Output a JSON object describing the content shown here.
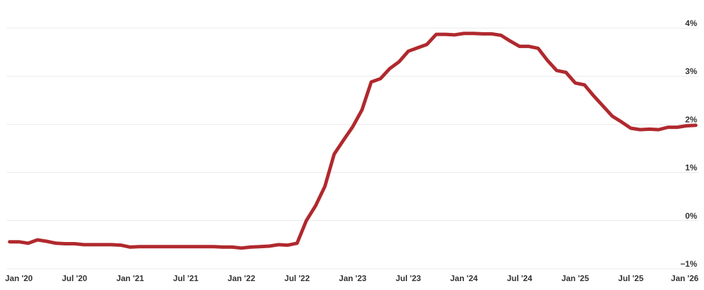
{
  "chart_data": {
    "type": "line",
    "x": [
      "2019-12",
      "2020-01",
      "2020-02",
      "2020-03",
      "2020-04",
      "2020-05",
      "2020-06",
      "2020-07",
      "2020-08",
      "2020-09",
      "2020-10",
      "2020-11",
      "2020-12",
      "2021-01",
      "2021-02",
      "2021-03",
      "2021-04",
      "2021-05",
      "2021-06",
      "2021-07",
      "2021-08",
      "2021-09",
      "2021-10",
      "2021-11",
      "2021-12",
      "2022-01",
      "2022-02",
      "2022-03",
      "2022-04",
      "2022-05",
      "2022-06",
      "2022-07",
      "2022-08",
      "2022-09",
      "2022-10",
      "2022-11",
      "2022-12",
      "2023-01",
      "2023-02",
      "2023-03",
      "2023-04",
      "2023-05",
      "2023-06",
      "2023-07",
      "2023-08",
      "2023-09",
      "2023-10",
      "2023-11",
      "2023-12",
      "2024-01",
      "2024-02",
      "2024-03",
      "2024-04",
      "2024-05",
      "2024-06",
      "2024-07",
      "2024-08",
      "2024-09",
      "2024-10",
      "2024-11",
      "2024-12",
      "2025-01",
      "2025-02",
      "2025-03",
      "2025-04",
      "2025-05",
      "2025-06",
      "2025-07",
      "2025-08",
      "2025-09",
      "2025-10",
      "2025-11",
      "2025-12",
      "2026-01",
      "2026-02"
    ],
    "series": [
      {
        "color": "#b0292e",
        "values": [
          -0.44,
          -0.44,
          -0.47,
          -0.4,
          -0.43,
          -0.47,
          -0.48,
          -0.48,
          -0.5,
          -0.5,
          -0.5,
          -0.5,
          -0.51,
          -0.55,
          -0.54,
          -0.54,
          -0.54,
          -0.54,
          -0.54,
          -0.54,
          -0.54,
          -0.54,
          -0.54,
          -0.55,
          -0.55,
          -0.57,
          -0.55,
          -0.54,
          -0.53,
          -0.5,
          -0.51,
          -0.47,
          0.0,
          0.31,
          0.71,
          1.38,
          1.67,
          1.95,
          2.3,
          2.88,
          2.95,
          3.16,
          3.3,
          3.52,
          3.59,
          3.66,
          3.87,
          3.87,
          3.86,
          3.89,
          3.89,
          3.88,
          3.88,
          3.85,
          3.73,
          3.62,
          3.62,
          3.58,
          3.33,
          3.12,
          3.08,
          2.86,
          2.82,
          2.59,
          2.38,
          2.17,
          2.05,
          1.92,
          1.89,
          1.9,
          1.89,
          1.94,
          1.94,
          1.97,
          1.98
        ]
      }
    ],
    "xlim": [
      "2019-12",
      "2026-02"
    ],
    "xticks": [
      {
        "value": "2020-01",
        "label": "Jan '20"
      },
      {
        "value": "2020-07",
        "label": "Jul '20"
      },
      {
        "value": "2021-01",
        "label": "Jan '21"
      },
      {
        "value": "2021-07",
        "label": "Jul '21"
      },
      {
        "value": "2022-01",
        "label": "Jan '22"
      },
      {
        "value": "2022-07",
        "label": "Jul '22"
      },
      {
        "value": "2023-01",
        "label": "Jan '23"
      },
      {
        "value": "2023-07",
        "label": "Jul '23"
      },
      {
        "value": "2024-01",
        "label": "Jan '24"
      },
      {
        "value": "2024-07",
        "label": "Jul '24"
      },
      {
        "value": "2025-01",
        "label": "Jan '25"
      },
      {
        "value": "2025-07",
        "label": "Jul '25"
      },
      {
        "value": "2026-01",
        "label": "Jan '26"
      }
    ],
    "ylim": [
      -1,
      4
    ],
    "yticks": [
      {
        "value": -1,
        "label": "−1%"
      },
      {
        "value": 0,
        "label": "0%"
      },
      {
        "value": 1,
        "label": "1%"
      },
      {
        "value": 2,
        "label": "2%"
      },
      {
        "value": 3,
        "label": "3%"
      },
      {
        "value": 4,
        "label": "4%"
      }
    ],
    "grid": true
  }
}
